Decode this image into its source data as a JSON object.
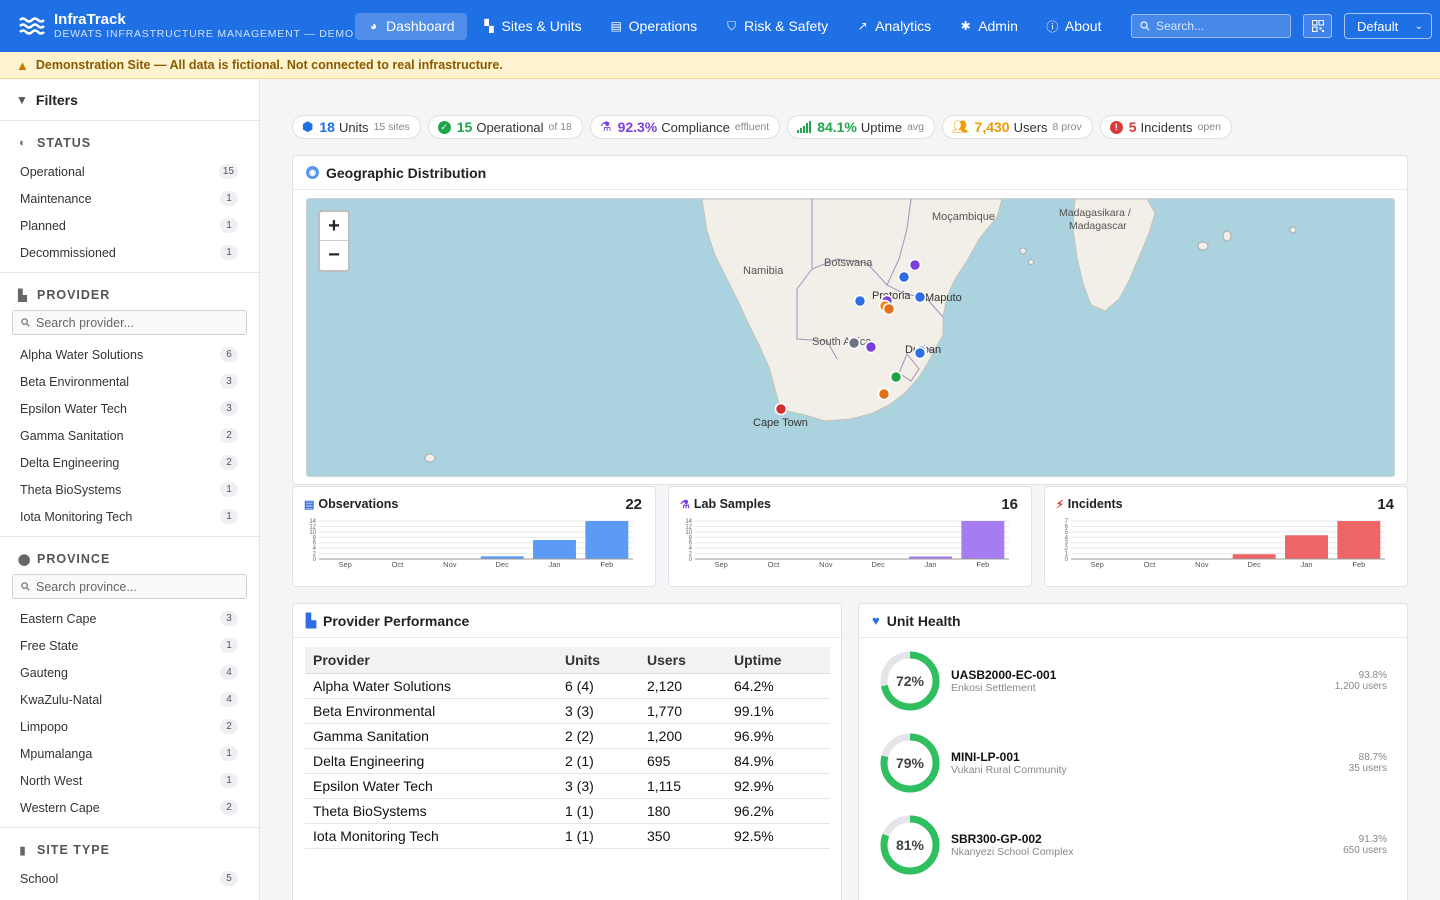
{
  "header": {
    "app_name": "InfraTrack",
    "app_subtitle": "DEWATS INFRASTRUCTURE MANAGEMENT — DEMO",
    "nav": [
      {
        "label": "Dashboard",
        "icon": "dashboard-icon",
        "active": true
      },
      {
        "label": "Sites & Units",
        "icon": "map-icon"
      },
      {
        "label": "Operations",
        "icon": "clipboard-icon"
      },
      {
        "label": "Risk & Safety",
        "icon": "shield-icon"
      },
      {
        "label": "Analytics",
        "icon": "chart-line-icon"
      },
      {
        "label": "Admin",
        "icon": "gear-icon"
      },
      {
        "label": "About",
        "icon": "info-icon"
      }
    ],
    "search_placeholder": "Search...",
    "profile_select": "Default"
  },
  "banner": {
    "text": "Demonstration Site — All data is fictional. Not connected to real infrastructure."
  },
  "sidebar": {
    "title": "Filters",
    "status": {
      "title": "STATUS",
      "items": [
        {
          "label": "Operational",
          "count": "15"
        },
        {
          "label": "Maintenance",
          "count": "1"
        },
        {
          "label": "Planned",
          "count": "1"
        },
        {
          "label": "Decommissioned",
          "count": "1"
        }
      ]
    },
    "provider": {
      "title": "PROVIDER",
      "search_placeholder": "Search provider...",
      "items": [
        {
          "label": "Alpha Water Solutions",
          "count": "6"
        },
        {
          "label": "Beta Environmental",
          "count": "3"
        },
        {
          "label": "Epsilon Water Tech",
          "count": "3"
        },
        {
          "label": "Gamma Sanitation",
          "count": "2"
        },
        {
          "label": "Delta Engineering",
          "count": "2"
        },
        {
          "label": "Theta BioSystems",
          "count": "1"
        },
        {
          "label": "Iota Monitoring Tech",
          "count": "1"
        }
      ]
    },
    "province": {
      "title": "PROVINCE",
      "search_placeholder": "Search province...",
      "items": [
        {
          "label": "Eastern Cape",
          "count": "3"
        },
        {
          "label": "Free State",
          "count": "1"
        },
        {
          "label": "Gauteng",
          "count": "4"
        },
        {
          "label": "KwaZulu-Natal",
          "count": "4"
        },
        {
          "label": "Limpopo",
          "count": "2"
        },
        {
          "label": "Mpumalanga",
          "count": "1"
        },
        {
          "label": "North West",
          "count": "1"
        },
        {
          "label": "Western Cape",
          "count": "2"
        }
      ]
    },
    "site_type": {
      "title": "SITE TYPE",
      "items": [
        {
          "label": "School",
          "count": "5"
        }
      ]
    }
  },
  "stats": [
    {
      "value": "18",
      "label": "Units",
      "sub": "15 sites",
      "color": "#1f6fe5",
      "icon": "units-icon"
    },
    {
      "value": "15",
      "label": "Operational",
      "sub": "of 18",
      "color": "#1fa54a",
      "icon": "check-circle-icon"
    },
    {
      "value": "92.3%",
      "label": "Compliance",
      "sub": "effluent",
      "color": "#7b3fe0",
      "icon": "flask-icon"
    },
    {
      "value": "84.1%",
      "label": "Uptime",
      "sub": "avg",
      "color": "#1fa54a",
      "icon": "signal-icon"
    },
    {
      "value": "7,430",
      "label": "Users",
      "sub": "8 prov",
      "color": "#f09a00",
      "icon": "users-icon"
    },
    {
      "value": "5",
      "label": "Incidents",
      "sub": "open",
      "color": "#d93b3b",
      "icon": "alert-icon"
    }
  ],
  "geo": {
    "title": "Geographic Distribution",
    "labels": {
      "namibia": "Namibia",
      "botswana": "Botswana",
      "mozambique": "Moçambique",
      "madagascar_1": "Madagasikara /",
      "madagascar_2": "Madagascar",
      "pretoria": "Pretoria",
      "maputo": "Maputo",
      "south_africa": "South Africa",
      "durban": "Durban",
      "cape_town": "Cape Town"
    },
    "zoom_in": "+",
    "zoom_out": "−"
  },
  "mini_charts": [
    {
      "title": "Observations",
      "total": "22",
      "color": "#5b9bf5",
      "icon": "clipboard-icon",
      "categories": [
        "Sep",
        "Oct",
        "Nov",
        "Dec",
        "Jan",
        "Feb"
      ],
      "values": [
        0,
        0,
        0,
        1,
        7,
        14
      ],
      "ymax": 14,
      "ticks": [
        "0",
        "2",
        "4",
        "6",
        "8",
        "10",
        "12",
        "14"
      ]
    },
    {
      "title": "Lab Samples",
      "total": "16",
      "color": "#a57cf2",
      "icon": "flask-icon",
      "categories": [
        "Sep",
        "Oct",
        "Nov",
        "Dec",
        "Jan",
        "Feb"
      ],
      "values": [
        0,
        0,
        0,
        0,
        1,
        15
      ],
      "ymax": 15,
      "ticks": [
        "0",
        "2",
        "4",
        "6",
        "8",
        "10",
        "12",
        "14"
      ]
    },
    {
      "title": "Incidents",
      "total": "14",
      "color": "#ee6565",
      "icon": "bolt-icon",
      "categories": [
        "Sep",
        "Oct",
        "Nov",
        "Dec",
        "Jan",
        "Feb"
      ],
      "values": [
        0,
        0,
        0,
        1,
        5,
        8
      ],
      "ymax": 8,
      "ticks": [
        "0",
        "1",
        "2",
        "3",
        "4",
        "5",
        "6",
        "7"
      ]
    }
  ],
  "provider_performance": {
    "title": "Provider Performance",
    "columns": [
      "Provider",
      "Units",
      "Users",
      "Uptime"
    ],
    "rows": [
      [
        "Alpha Water Solutions",
        "6 (4)",
        "2,120",
        "64.2%"
      ],
      [
        "Beta Environmental",
        "3 (3)",
        "1,770",
        "99.1%"
      ],
      [
        "Gamma Sanitation",
        "2 (2)",
        "1,200",
        "96.9%"
      ],
      [
        "Delta Engineering",
        "2 (1)",
        "695",
        "84.9%"
      ],
      [
        "Epsilon Water Tech",
        "3 (3)",
        "1,115",
        "92.9%"
      ],
      [
        "Theta BioSystems",
        "1 (1)",
        "180",
        "96.2%"
      ],
      [
        "Iota Monitoring Tech",
        "1 (1)",
        "350",
        "92.5%"
      ]
    ]
  },
  "unit_health": {
    "title": "Unit Health",
    "items": [
      {
        "score": 72,
        "score_label": "72%",
        "name": "UASB2000-EC-001",
        "site": "Enkosi Settlement",
        "uptime": "93.8%",
        "users": "1,200 users"
      },
      {
        "score": 79,
        "score_label": "79%",
        "name": "MINI-LP-001",
        "site": "Vukani Rural Community",
        "uptime": "88.7%",
        "users": "35 users"
      },
      {
        "score": 81,
        "score_label": "81%",
        "name": "SBR300-GP-002",
        "site": "Nkanyezi School Complex",
        "uptime": "91.3%",
        "users": "650 users"
      }
    ],
    "ring_color": "#2fbf5e"
  },
  "map_markers": [
    {
      "color": "#7b3fe0"
    },
    {
      "color": "#2e6de3"
    },
    {
      "color": "#2e6de3"
    },
    {
      "color": "#7b3fe0"
    },
    {
      "color": "#f08c1a"
    },
    {
      "color": "#e0701a"
    },
    {
      "color": "#2e6de3"
    },
    {
      "color": "#6b7280"
    },
    {
      "color": "#7b3fe0"
    },
    {
      "color": "#2e6de3"
    },
    {
      "color": "#2e6de3"
    },
    {
      "color": "#21a045"
    },
    {
      "color": "#e0701a"
    },
    {
      "color": "#d92d2d"
    }
  ]
}
